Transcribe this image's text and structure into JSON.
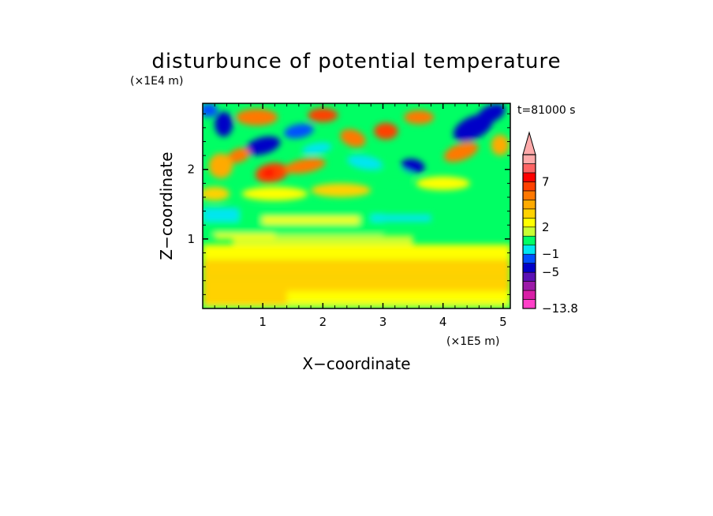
{
  "chart_data": {
    "type": "heatmap",
    "title": "disturbunce of potential temperature",
    "time_label": "t=81000 s",
    "xlabel": "X−coordinate",
    "ylabel": "Z−coordinate",
    "x_unit": "(×1E5 m)",
    "y_unit": "(×1E4 m)",
    "xlim": [
      0,
      5.12
    ],
    "ylim": [
      0,
      2.95
    ],
    "x_ticks": [
      {
        "value": 1,
        "label": "1"
      },
      {
        "value": 2,
        "label": "2"
      },
      {
        "value": 3,
        "label": "3"
      },
      {
        "value": 4,
        "label": "4"
      },
      {
        "value": 5,
        "label": "5"
      }
    ],
    "y_ticks": [
      {
        "value": 1,
        "label": "1"
      },
      {
        "value": 2,
        "label": "2"
      }
    ],
    "colorbar": {
      "min": -13.8,
      "labels": [
        {
          "value": 7,
          "label": "7"
        },
        {
          "value": 2,
          "label": "2"
        },
        {
          "value": -1,
          "label": "−1"
        },
        {
          "value": -5,
          "label": "−5"
        },
        {
          "value": -13.8,
          "label": "−13.8"
        }
      ],
      "bands": [
        {
          "color": "#ff40c8"
        },
        {
          "color": "#d81ea6"
        },
        {
          "color": "#9c1aa8"
        },
        {
          "color": "#5a10b4"
        },
        {
          "color": "#0000c8"
        },
        {
          "color": "#0050ff"
        },
        {
          "color": "#00e6f0"
        },
        {
          "color": "#00ff64"
        },
        {
          "color": "#c8ff32"
        },
        {
          "color": "#ffff00"
        },
        {
          "color": "#ffd200"
        },
        {
          "color": "#ffaa00"
        },
        {
          "color": "#ff7800"
        },
        {
          "color": "#ff4000"
        },
        {
          "color": "#ff0000"
        },
        {
          "color": "#ff6464"
        },
        {
          "color": "#ffaaaa"
        }
      ],
      "extend": "max"
    }
  }
}
